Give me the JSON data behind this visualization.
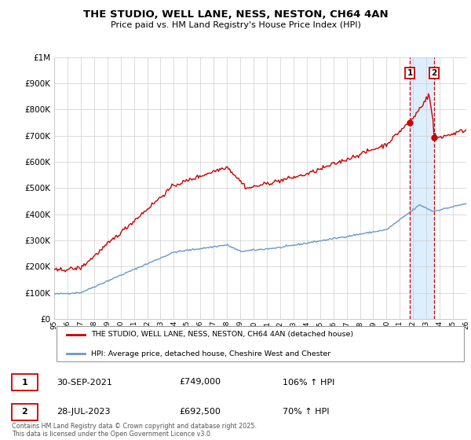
{
  "title": "THE STUDIO, WELL LANE, NESS, NESTON, CH64 4AN",
  "subtitle": "Price paid vs. HM Land Registry's House Price Index (HPI)",
  "line1_label": "THE STUDIO, WELL LANE, NESS, NESTON, CH64 4AN (detached house)",
  "line2_label": "HPI: Average price, detached house, Cheshire West and Chester",
  "line1_color": "#cc0000",
  "line2_color": "#6699cc",
  "vline_color": "#cc0000",
  "shade_color": "#ddeeff",
  "legend1_date": "30-SEP-2021",
  "legend1_price": "£749,000",
  "legend1_hpi": "106% ↑ HPI",
  "legend2_date": "28-JUL-2023",
  "legend2_price": "£692,500",
  "legend2_hpi": "70% ↑ HPI",
  "footer": "Contains HM Land Registry data © Crown copyright and database right 2025.\nThis data is licensed under the Open Government Licence v3.0.",
  "ylim": [
    0,
    1000000
  ],
  "yticks": [
    0,
    100000,
    200000,
    300000,
    400000,
    500000,
    600000,
    700000,
    800000,
    900000,
    1000000
  ],
  "ytick_labels": [
    "£0",
    "£100K",
    "£200K",
    "£300K",
    "£400K",
    "£500K",
    "£600K",
    "£700K",
    "£800K",
    "£900K",
    "£1M"
  ],
  "background_color": "#ffffff",
  "grid_color": "#cccccc",
  "ann1_year": 2021.75,
  "ann1_price": 749000,
  "ann2_year": 2023.58,
  "ann2_price": 692500
}
